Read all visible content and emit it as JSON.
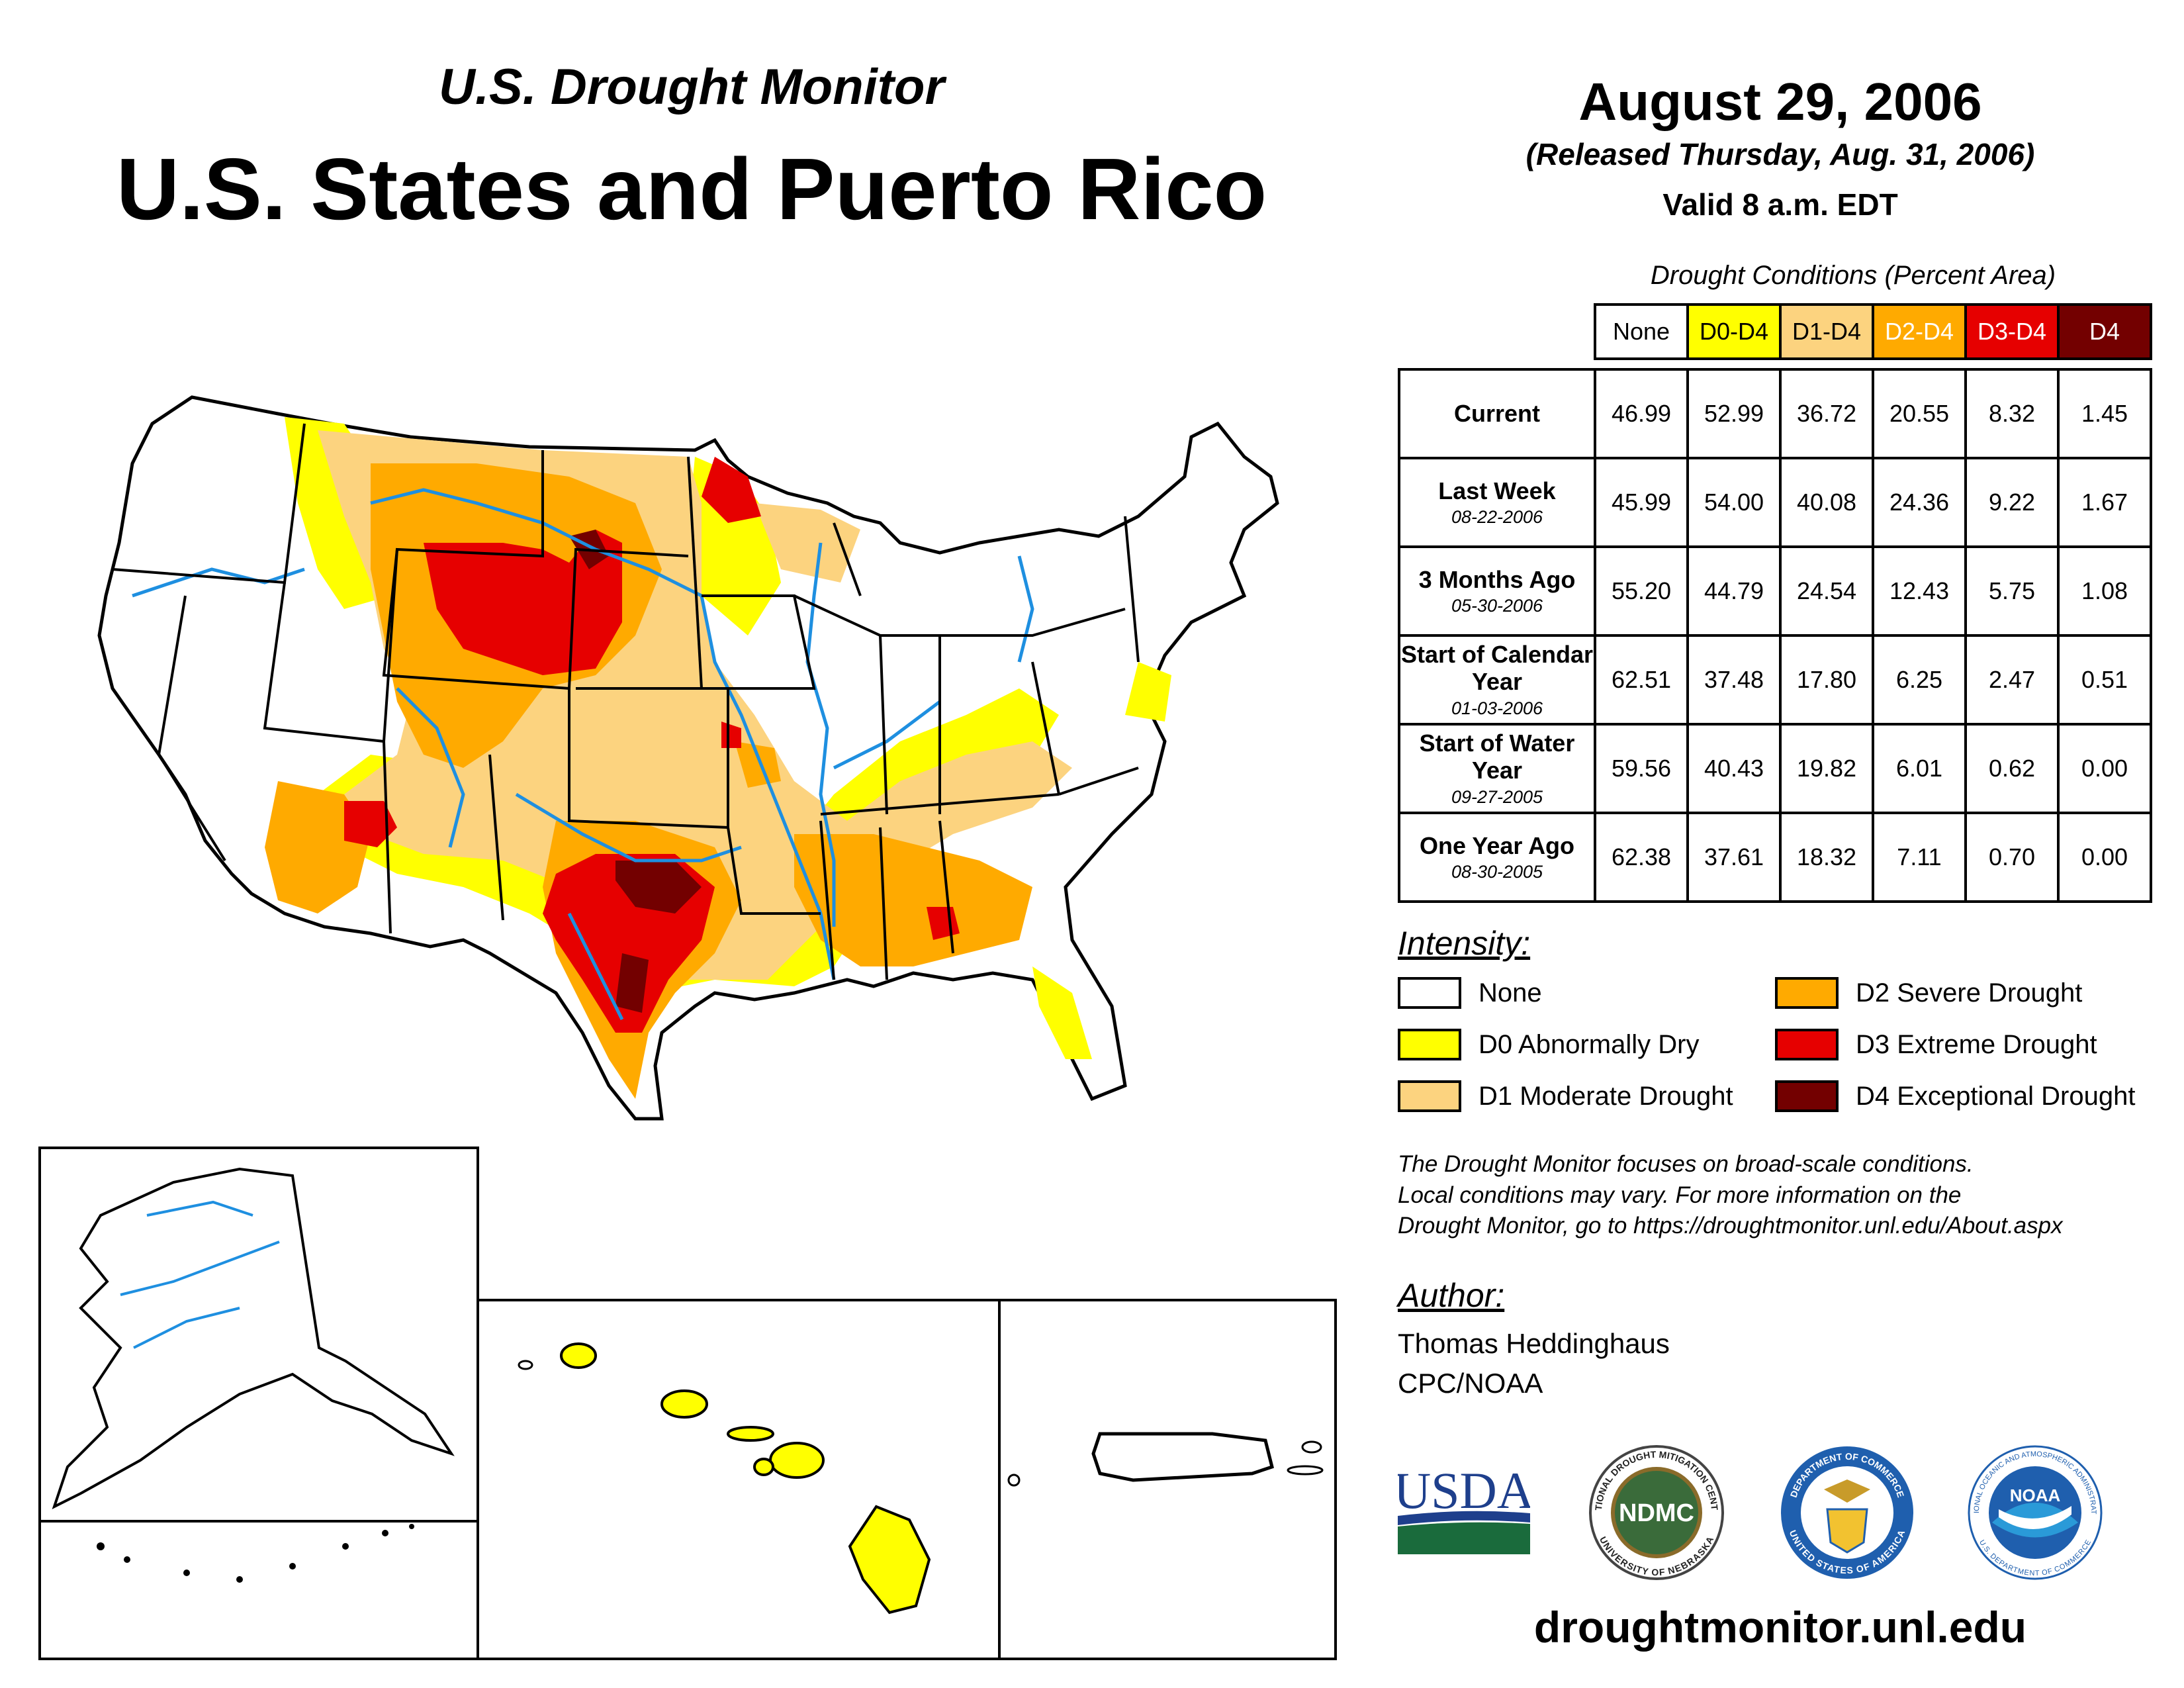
{
  "header": {
    "subtitle": "U.S. Drought Monitor",
    "title": "U.S. States and Puerto Rico",
    "date": "August 29, 2006",
    "released": "(Released Thursday, Aug. 31, 2006)",
    "valid": "Valid 8 a.m. EDT"
  },
  "table": {
    "caption": "Drought Conditions (Percent Area)",
    "columns": [
      {
        "label": "None",
        "bg": "#ffffff",
        "fg": "#000000"
      },
      {
        "label": "D0-D4",
        "bg": "#ffff00",
        "fg": "#000000"
      },
      {
        "label": "D1-D4",
        "bg": "#fcd37f",
        "fg": "#000000"
      },
      {
        "label": "D2-D4",
        "bg": "#ffaa00",
        "fg": "#ffffff"
      },
      {
        "label": "D3-D4",
        "bg": "#e60000",
        "fg": "#ffffff"
      },
      {
        "label": "D4",
        "bg": "#730000",
        "fg": "#ffffff"
      }
    ],
    "rows": [
      {
        "label": "Current",
        "date": "",
        "values": [
          "46.99",
          "52.99",
          "36.72",
          "20.55",
          "8.32",
          "1.45"
        ]
      },
      {
        "label": "Last Week",
        "date": "08-22-2006",
        "values": [
          "45.99",
          "54.00",
          "40.08",
          "24.36",
          "9.22",
          "1.67"
        ]
      },
      {
        "label": "3 Months Ago",
        "date": "05-30-2006",
        "values": [
          "55.20",
          "44.79",
          "24.54",
          "12.43",
          "5.75",
          "1.08"
        ]
      },
      {
        "label": "Start of Calendar Year",
        "date": "01-03-2006",
        "values": [
          "62.51",
          "37.48",
          "17.80",
          "6.25",
          "2.47",
          "0.51"
        ]
      },
      {
        "label": "Start of Water Year",
        "date": "09-27-2005",
        "values": [
          "59.56",
          "40.43",
          "19.82",
          "6.01",
          "0.62",
          "0.00"
        ]
      },
      {
        "label": "One Year Ago",
        "date": "08-30-2005",
        "values": [
          "62.38",
          "37.61",
          "18.32",
          "7.11",
          "0.70",
          "0.00"
        ]
      }
    ]
  },
  "intensity": {
    "title": "Intensity:",
    "items": [
      {
        "label": "None",
        "color": "#ffffff"
      },
      {
        "label": "D0 Abnormally Dry",
        "color": "#ffff00"
      },
      {
        "label": "D1 Moderate Drought",
        "color": "#fcd37f"
      },
      {
        "label": "D2 Severe Drought",
        "color": "#ffaa00"
      },
      {
        "label": "D3 Extreme Drought",
        "color": "#e60000"
      },
      {
        "label": "D4 Exceptional Drought",
        "color": "#730000"
      }
    ]
  },
  "note": {
    "line1": "The Drought Monitor focuses on broad-scale conditions.",
    "line2": "Local conditions may vary. For more information on the",
    "line3": "Drought Monitor, go to https://droughtmonitor.unl.edu/About.aspx"
  },
  "author": {
    "title": "Author:",
    "name": "Thomas Heddinghaus",
    "org": "CPC/NOAA"
  },
  "logos": {
    "usda": "USDA",
    "ndmc": "NDMC",
    "ndmc_ring_top": "NATIONAL DROUGHT MITIGATION CENTER",
    "ndmc_ring_bottom": "UNIVERSITY OF NEBRASKA",
    "commerce_ring_top": "DEPARTMENT OF COMMERCE",
    "commerce_ring_bottom": "UNITED STATES OF AMERICA",
    "noaa": "NOAA",
    "noaa_ring_top": "NATIONAL OCEANIC AND ATMOSPHERIC ADMINISTRATION",
    "noaa_ring_bottom": "U.S. DEPARTMENT OF COMMERCE"
  },
  "footer": {
    "site": "droughtmonitor.unl.edu"
  }
}
